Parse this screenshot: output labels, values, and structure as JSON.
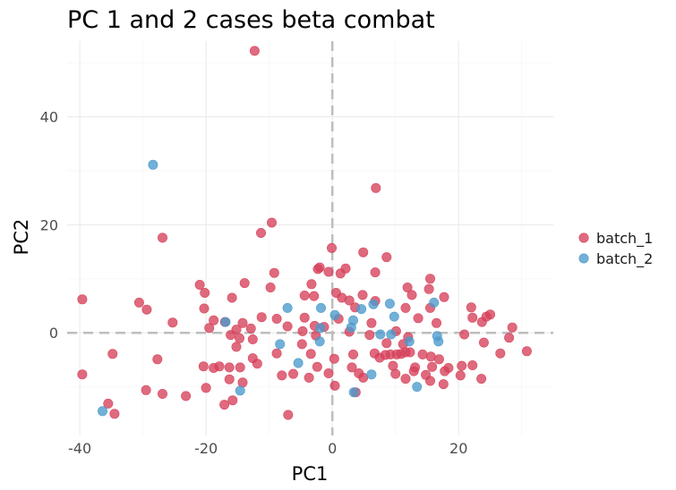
{
  "chart_data": {
    "type": "scatter",
    "title": "PC 1 and 2 cases beta combat",
    "xlabel": "PC1",
    "ylabel": "PC2",
    "xlim": [
      -42,
      35
    ],
    "ylim": [
      -19,
      54
    ],
    "xticks": [
      -40,
      -20,
      0,
      20
    ],
    "yticks": [
      0,
      20,
      40
    ],
    "xtick_labels": [
      "-40",
      "-20",
      "0",
      "20"
    ],
    "ytick_labels": [
      "0",
      "20",
      "40"
    ],
    "grid": true,
    "reference_lines": {
      "x": 0,
      "y": 0
    },
    "legend_position": "right",
    "series": [
      {
        "name": "batch_1",
        "color": "#d6405a",
        "points": [
          [
            -12.3,
            52.2
          ],
          [
            6.9,
            26.8
          ],
          [
            -9.6,
            20.4
          ],
          [
            -26.9,
            17.6
          ],
          [
            -11.3,
            18.5
          ],
          [
            -0.1,
            15.7
          ],
          [
            4.9,
            14.9
          ],
          [
            8.6,
            14.0
          ],
          [
            -2.0,
            12.1
          ],
          [
            2.1,
            11.9
          ],
          [
            -2.3,
            11.8
          ],
          [
            -0.6,
            11.3
          ],
          [
            -9.2,
            11.1
          ],
          [
            1.3,
            11.0
          ],
          [
            6.8,
            11.2
          ],
          [
            15.5,
            10.0
          ],
          [
            -13.9,
            9.2
          ],
          [
            -21.0,
            8.9
          ],
          [
            -3.3,
            9.0
          ],
          [
            -9.8,
            8.4
          ],
          [
            11.9,
            8.4
          ],
          [
            15.3,
            8.1
          ],
          [
            -20.2,
            7.4
          ],
          [
            0.6,
            7.4
          ],
          [
            4.8,
            7.0
          ],
          [
            12.6,
            7.0
          ],
          [
            -4.4,
            6.9
          ],
          [
            1.5,
            6.5
          ],
          [
            -2.9,
            6.8
          ],
          [
            -15.9,
            6.5
          ],
          [
            17.7,
            6.6
          ],
          [
            2.7,
            6.0
          ],
          [
            6.8,
            5.9
          ],
          [
            -39.6,
            6.2
          ],
          [
            -30.6,
            5.6
          ],
          [
            -29.4,
            4.3
          ],
          [
            -20.3,
            4.5
          ],
          [
            3.6,
            4.7
          ],
          [
            11.6,
            4.6
          ],
          [
            15.5,
            4.6
          ],
          [
            22.0,
            4.7
          ],
          [
            25.0,
            3.4
          ],
          [
            -8.8,
            2.6
          ],
          [
            -11.2,
            2.9
          ],
          [
            -4.4,
            2.8
          ],
          [
            1.0,
            2.6
          ],
          [
            13.6,
            2.7
          ],
          [
            22.2,
            2.8
          ],
          [
            24.4,
            3.0
          ],
          [
            -25.3,
            1.9
          ],
          [
            -18.8,
            2.3
          ],
          [
            -17.0,
            2.0
          ],
          [
            -14.2,
            1.8
          ],
          [
            -7.1,
            1.2
          ],
          [
            -2.8,
            1.3
          ],
          [
            -1.3,
            1.1
          ],
          [
            6.2,
            1.8
          ],
          [
            16.5,
            1.8
          ],
          [
            23.7,
            2.0
          ],
          [
            -19.5,
            0.9
          ],
          [
            -15.2,
            0.6
          ],
          [
            -12.9,
            0.8
          ],
          [
            -4.7,
            0.3
          ],
          [
            2.7,
            0.2
          ],
          [
            10.1,
            0.3
          ],
          [
            28.5,
            1.0
          ],
          [
            -16.1,
            -0.4
          ],
          [
            -14.7,
            -1.0
          ],
          [
            -12.6,
            -1.2
          ],
          [
            -2.6,
            -0.5
          ],
          [
            5.9,
            -0.4
          ],
          [
            12.0,
            -0.8
          ],
          [
            20.9,
            -0.3
          ],
          [
            -15.2,
            -2.6
          ],
          [
            -4.8,
            -2.1
          ],
          [
            8.6,
            -1.9
          ],
          [
            11.2,
            -2.1
          ],
          [
            24.0,
            -1.8
          ],
          [
            28.0,
            -0.9
          ],
          [
            -34.8,
            -3.9
          ],
          [
            -27.7,
            -4.9
          ],
          [
            -12.6,
            -4.7
          ],
          [
            -8.8,
            -3.8
          ],
          [
            -3.4,
            -3.9
          ],
          [
            0.3,
            -4.8
          ],
          [
            3.3,
            -4.0
          ],
          [
            6.7,
            -3.8
          ],
          [
            7.5,
            -4.6
          ],
          [
            8.4,
            -4.1
          ],
          [
            9.2,
            -4.0
          ],
          [
            10.2,
            -4.0
          ],
          [
            10.9,
            -3.9
          ],
          [
            11.6,
            -3.6
          ],
          [
            12.3,
            -3.6
          ],
          [
            14.3,
            -4.0
          ],
          [
            15.6,
            -4.4
          ],
          [
            16.9,
            -4.9
          ],
          [
            26.6,
            -3.8
          ],
          [
            30.8,
            -3.4
          ],
          [
            -20.4,
            -6.2
          ],
          [
            -18.8,
            -6.5
          ],
          [
            -17.9,
            -6.2
          ],
          [
            -16.3,
            -6.4
          ],
          [
            -14.6,
            -6.4
          ],
          [
            -11.9,
            -5.7
          ],
          [
            -2.4,
            -6.3
          ],
          [
            3.1,
            -6.4
          ],
          [
            9.6,
            -6.1
          ],
          [
            13.1,
            -6.4
          ],
          [
            15.8,
            -6.3
          ],
          [
            18.4,
            -6.5
          ],
          [
            20.5,
            -6.1
          ],
          [
            22.2,
            -6.0
          ],
          [
            -39.6,
            -7.7
          ],
          [
            -6.2,
            -7.6
          ],
          [
            -3.7,
            -8.3
          ],
          [
            -0.6,
            -7.5
          ],
          [
            4.2,
            -7.5
          ],
          [
            10.0,
            -7.6
          ],
          [
            12.9,
            -7.1
          ],
          [
            14.8,
            -7.8
          ],
          [
            17.8,
            -7.1
          ],
          [
            20.3,
            -7.9
          ],
          [
            23.6,
            -8.5
          ],
          [
            -16.3,
            -8.6
          ],
          [
            -8.0,
            -7.9
          ],
          [
            4.9,
            -8.3
          ],
          [
            11.6,
            -8.5
          ],
          [
            15.5,
            -8.9
          ],
          [
            -29.5,
            -10.6
          ],
          [
            -26.9,
            -11.3
          ],
          [
            -23.2,
            -11.7
          ],
          [
            -20.0,
            -10.2
          ],
          [
            -14.2,
            -9.2
          ],
          [
            0.4,
            -9.8
          ],
          [
            17.6,
            -9.5
          ],
          [
            -34.5,
            -15.0
          ],
          [
            -35.5,
            -13.1
          ],
          [
            -17.1,
            -13.3
          ],
          [
            -15.8,
            -12.5
          ],
          [
            -7.0,
            -15.2
          ],
          [
            3.7,
            -11.0
          ]
        ]
      },
      {
        "name": "batch_2",
        "color": "#4a9acc",
        "points": [
          [
            -28.4,
            31.1
          ],
          [
            16.1,
            5.6
          ],
          [
            9.1,
            5.4
          ],
          [
            6.5,
            5.3
          ],
          [
            -7.1,
            4.6
          ],
          [
            -1.8,
            4.6
          ],
          [
            4.6,
            4.4
          ],
          [
            0.4,
            3.3
          ],
          [
            9.8,
            3.0
          ],
          [
            -16.9,
            2.0
          ],
          [
            3.3,
            2.3
          ],
          [
            3.0,
            1.0
          ],
          [
            -1.9,
            0.9
          ],
          [
            16.6,
            -0.6
          ],
          [
            9.3,
            -0.3
          ],
          [
            7.6,
            -0.3
          ],
          [
            -2.0,
            -1.6
          ],
          [
            12.2,
            -1.6
          ],
          [
            16.8,
            -1.6
          ],
          [
            -8.3,
            -2.1
          ],
          [
            6.2,
            -7.7
          ],
          [
            -5.4,
            -5.6
          ],
          [
            -14.6,
            -10.7
          ],
          [
            3.4,
            -11.0
          ],
          [
            13.4,
            -10.0
          ],
          [
            -36.4,
            -14.5
          ]
        ]
      }
    ]
  }
}
